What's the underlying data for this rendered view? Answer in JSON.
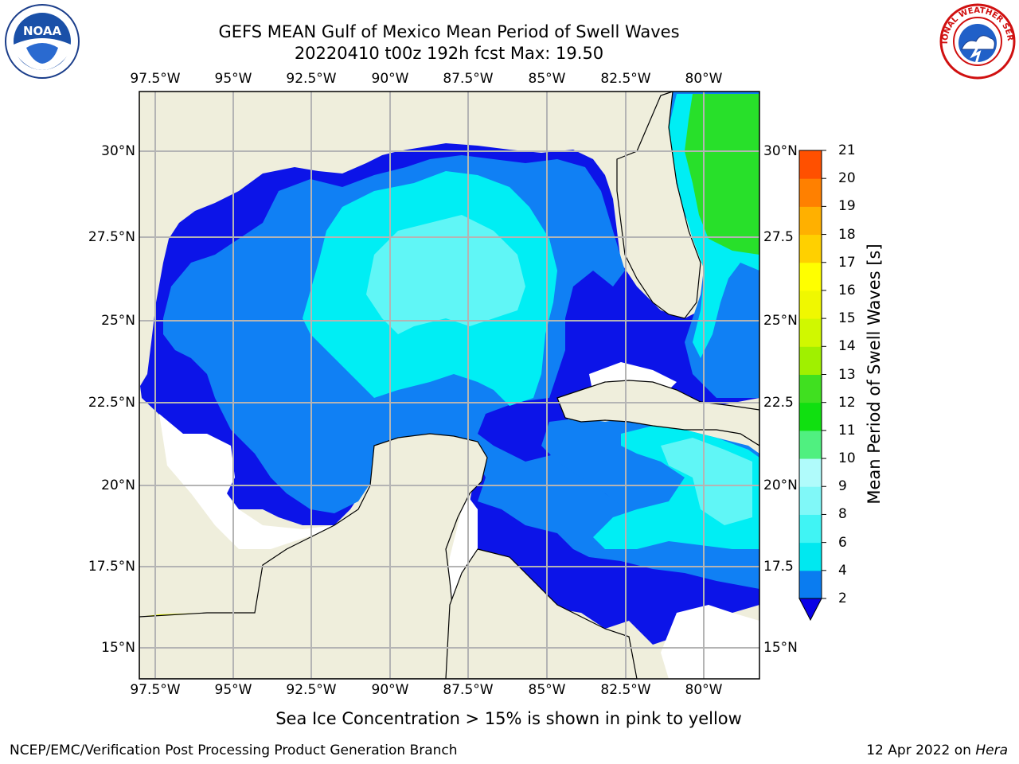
{
  "title_line1": "GEFS MEAN Gulf of Mexico Mean Period of Swell Waves",
  "title_line2": "20220410 t00z 192h fcst   Max: 19.50",
  "lon_ticks": [
    "97.5°W",
    "95°W",
    "92.5°W",
    "90°W",
    "87.5°W",
    "85°W",
    "82.5°W",
    "80°W"
  ],
  "lat_ticks_left": [
    "30°N",
    "27.5°N",
    "25°N",
    "22.5°N",
    "20°N",
    "17.5°N",
    "15°N"
  ],
  "lat_ticks_right": [
    "30°N",
    "27.5",
    "25°N",
    "22.5",
    "20°N",
    "17.5",
    "15°N"
  ],
  "colorbar": {
    "title": "Mean Period of Swell Waves [s]",
    "levels": [
      "2",
      "4",
      "6",
      "8",
      "9",
      "10",
      "11",
      "12",
      "13",
      "14",
      "15",
      "16",
      "17",
      "18",
      "19",
      "20",
      "21"
    ],
    "colors": [
      "#0a7cf0",
      "#00e8f0",
      "#40f4f4",
      "#80f8f8",
      "#b0fbfb",
      "#50f080",
      "#10e010",
      "#40e020",
      "#a0f000",
      "#d0f800",
      "#f0f800",
      "#ffff00",
      "#ffd000",
      "#ffb000",
      "#ff8000",
      "#ff5000",
      "#ff0000"
    ],
    "extend_color": "#0a00e6"
  },
  "field_colors": {
    "land": "#efeedc",
    "ocean_deep": "#0c14e8",
    "ocean_blue": "#1080f4",
    "ocean_cyan": "#00eef4",
    "ocean_light": "#60f6f6",
    "green": "#28e02a",
    "yellow": "#e6f400",
    "orange": "#f08020"
  },
  "footnote": "Sea Ice Concentration > 15% is shown in pink to yellow",
  "credit_left": "NCEP/EMC/Verification Post Processing Product Generation Branch",
  "credit_right_date": "12 Apr 2022 on ",
  "credit_right_host": "Hera",
  "logos": {
    "noaa_text": "NOAA",
    "nws_text": "NATIONAL WEATHER SERVICE"
  }
}
